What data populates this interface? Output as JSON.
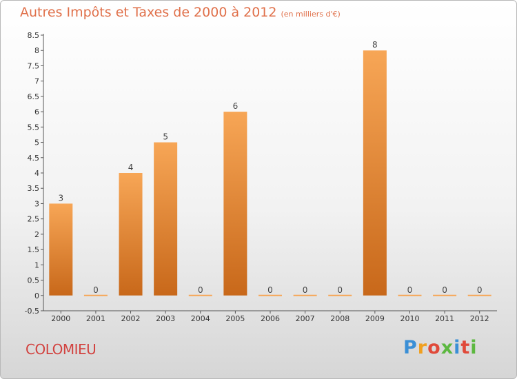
{
  "header": {
    "title": "Autres Impôts et Taxes de 2000 à 2012",
    "unit": "(en milliers d'€)"
  },
  "commune": "COLOMIEU",
  "logo": {
    "text": "Proxiti",
    "letter_colors": [
      "#3a8fd6",
      "#f0a020",
      "#e04a3a",
      "#5cb840",
      "#3a8fd6",
      "#e04a3a",
      "#5cb840"
    ]
  },
  "colors": {
    "bar_top": "#f7a656",
    "bar_bottom": "#c8681a",
    "title": "#e0704a",
    "commune": "#d2423f"
  },
  "chart_data": {
    "type": "bar",
    "title": "Autres Impôts et Taxes de 2000 à 2012",
    "subtitle": "(en milliers d'€)",
    "xlabel": "",
    "ylabel": "",
    "categories": [
      "2000",
      "2001",
      "2002",
      "2003",
      "2004",
      "2005",
      "2006",
      "2007",
      "2008",
      "2009",
      "2010",
      "2011",
      "2012"
    ],
    "values": [
      3,
      0,
      4,
      5,
      0,
      6,
      0,
      0,
      0,
      8,
      0,
      0,
      0
    ],
    "data_labels": [
      "3",
      "0",
      "4",
      "5",
      "0",
      "6",
      "0",
      "0",
      "0",
      "8",
      "0",
      "0",
      "0"
    ],
    "ylim": [
      -0.5,
      8.5
    ],
    "yticks": [
      -0.5,
      0,
      0.5,
      1,
      1.5,
      2,
      2.5,
      3,
      3.5,
      4,
      4.5,
      5,
      5.5,
      6,
      6.5,
      7,
      7.5,
      8,
      8.5
    ],
    "ytick_labels": [
      "-0.5",
      "0",
      "0.5",
      "1",
      "1.5",
      "2",
      "2.5",
      "3",
      "3.5",
      "4",
      "4.5",
      "5",
      "5.5",
      "6",
      "6.5",
      "7",
      "7.5",
      "8",
      "8.5"
    ],
    "grid": false,
    "legend": "none"
  }
}
